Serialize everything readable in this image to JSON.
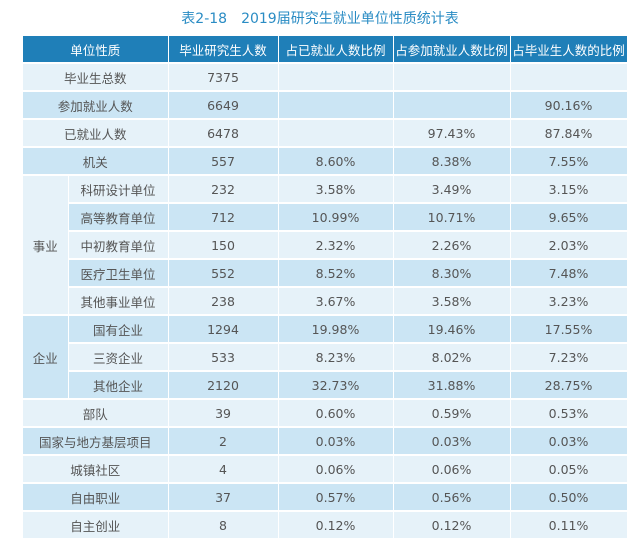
{
  "title": "表2-18　2019届研究生就业单位性质统计表",
  "colors": {
    "header": "#1f7fb8",
    "row_light": "#e6f2f9",
    "row_dark": "#cbe5f4",
    "title": "#2a8cc4"
  },
  "headers": [
    "单位性质",
    "毕业研究生人数",
    "占已就业人数比例",
    "占参加就业人数比例",
    "占毕业生人数的比例"
  ],
  "rows": [
    {
      "label": "毕业生总数",
      "count": "7375",
      "p1": "",
      "p2": "",
      "p3": ""
    },
    {
      "label": "参加就业人数",
      "count": "6649",
      "p1": "",
      "p2": "",
      "p3": "90.16%"
    },
    {
      "label": "已就业人数",
      "count": "6478",
      "p1": "",
      "p2": "97.43%",
      "p3": "87.84%"
    },
    {
      "label": "机关",
      "count": "557",
      "p1": "8.60%",
      "p2": "8.38%",
      "p3": "7.55%"
    },
    {
      "group": "事业",
      "label": "科研设计单位",
      "count": "232",
      "p1": "3.58%",
      "p2": "3.49%",
      "p3": "3.15%"
    },
    {
      "label": "高等教育单位",
      "count": "712",
      "p1": "10.99%",
      "p2": "10.71%",
      "p3": "9.65%"
    },
    {
      "label": "中初教育单位",
      "count": "150",
      "p1": "2.32%",
      "p2": "2.26%",
      "p3": "2.03%"
    },
    {
      "label": "医疗卫生单位",
      "count": "552",
      "p1": "8.52%",
      "p2": "8.30%",
      "p3": "7.48%"
    },
    {
      "label": "其他事业单位",
      "count": "238",
      "p1": "3.67%",
      "p2": "3.58%",
      "p3": "3.23%"
    },
    {
      "group": "企业",
      "label": "国有企业",
      "count": "1294",
      "p1": "19.98%",
      "p2": "19.46%",
      "p3": "17.55%"
    },
    {
      "label": "三资企业",
      "count": "533",
      "p1": "8.23%",
      "p2": "8.02%",
      "p3": "7.23%"
    },
    {
      "label": "其他企业",
      "count": "2120",
      "p1": "32.73%",
      "p2": "31.88%",
      "p3": "28.75%"
    },
    {
      "label": "部队",
      "count": "39",
      "p1": "0.60%",
      "p2": "0.59%",
      "p3": "0.53%"
    },
    {
      "label": "国家与地方基层项目",
      "count": "2",
      "p1": "0.03%",
      "p2": "0.03%",
      "p3": "0.03%"
    },
    {
      "label": "城镇社区",
      "count": "4",
      "p1": "0.06%",
      "p2": "0.06%",
      "p3": "0.05%"
    },
    {
      "label": "自由职业",
      "count": "37",
      "p1": "0.57%",
      "p2": "0.56%",
      "p3": "0.50%"
    },
    {
      "label": "自主创业",
      "count": "8",
      "p1": "0.12%",
      "p2": "0.12%",
      "p3": "0.11%"
    }
  ]
}
